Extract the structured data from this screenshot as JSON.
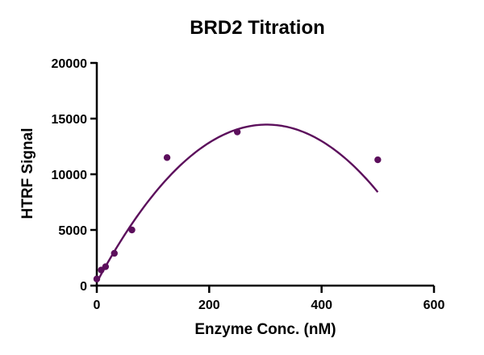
{
  "chart_data": {
    "type": "scatter",
    "title": "BRD2 Titration",
    "xlabel": "Enzyme Conc. (nM)",
    "ylabel": "HTRF Signal",
    "xlim": [
      0,
      600
    ],
    "ylim": [
      0,
      20000
    ],
    "x_ticks": [
      "0",
      "200",
      "400",
      "600"
    ],
    "y_ticks": [
      "0",
      "5000",
      "10000",
      "15000",
      "20000"
    ],
    "grid": false,
    "legend": "none",
    "colors": {
      "series": "#5c0f5c",
      "axis": "#000000"
    },
    "series": [
      {
        "points": [
          {
            "x": 0,
            "y": 600
          },
          {
            "x": 7.8,
            "y": 1400
          },
          {
            "x": 15.6,
            "y": 1700
          },
          {
            "x": 31.25,
            "y": 2900
          },
          {
            "x": 62.5,
            "y": 5000
          },
          {
            "x": 125,
            "y": 11500
          },
          {
            "x": 250,
            "y": 13800
          },
          {
            "x": 500,
            "y": 11300
          }
        ],
        "fit": {
          "type": "quadratic",
          "coefficients": [
            300,
            93.7,
            -0.155
          ]
        }
      }
    ]
  }
}
